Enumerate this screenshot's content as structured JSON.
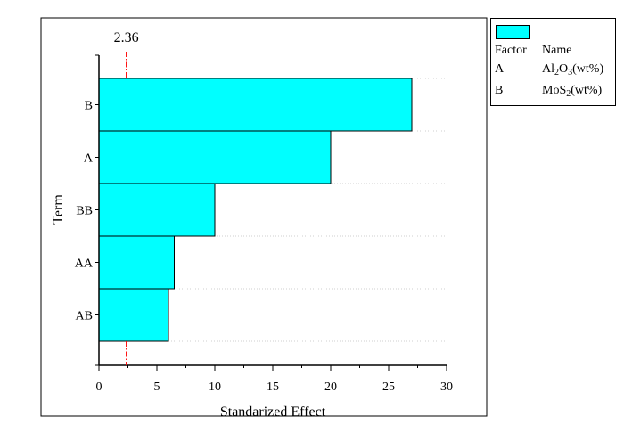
{
  "chart_data": {
    "type": "bar",
    "orientation": "horizontal",
    "title": "",
    "xlabel": "Standarized Effect",
    "ylabel": "Term",
    "categories": [
      "B",
      "A",
      "BB",
      "AA",
      "AB"
    ],
    "values": [
      27,
      20,
      10,
      6.5,
      6
    ],
    "xlim": [
      0,
      30
    ],
    "xticks": [
      "0",
      "5",
      "10",
      "15",
      "20",
      "25",
      "30"
    ],
    "threshold": {
      "value": 2.36,
      "label": "2.36",
      "color": "#ff0000"
    },
    "bar_color": "#00ffff",
    "grid": "horizontal dotted",
    "legend": {
      "placement": "top-right outside",
      "header": [
        "Factor",
        "Name"
      ],
      "rows": [
        {
          "factor": "A",
          "name_base": "Al",
          "sub1": "2",
          "mid": "O",
          "sub2": "3",
          "suffix": "(wt%)"
        },
        {
          "factor": "B",
          "name_base": "MoS",
          "sub1": "2",
          "mid": "",
          "sub2": "",
          "suffix": "(wt%)"
        }
      ]
    }
  }
}
